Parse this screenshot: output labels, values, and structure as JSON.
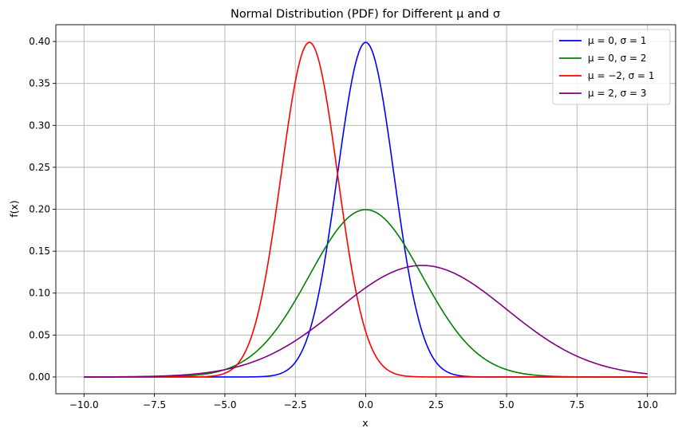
{
  "chart_data": {
    "type": "line",
    "title": "Normal Distribution (PDF) for Different μ and σ",
    "xlabel": "x",
    "ylabel": "f(x)",
    "xlim": [
      -11.0,
      11.0
    ],
    "ylim": [
      -0.02,
      0.42
    ],
    "grid": true,
    "legend_position": "top-right",
    "x_ticks": [
      "−10.0",
      "−7.5",
      "−5.0",
      "−2.5",
      "0.0",
      "2.5",
      "5.0",
      "7.5",
      "10.0"
    ],
    "x_tick_values": [
      -10,
      -7.5,
      -5,
      -2.5,
      0,
      2.5,
      5,
      7.5,
      10
    ],
    "y_ticks": [
      "0.00",
      "0.05",
      "0.10",
      "0.15",
      "0.20",
      "0.25",
      "0.30",
      "0.35",
      "0.40"
    ],
    "y_tick_values": [
      0,
      0.05,
      0.1,
      0.15,
      0.2,
      0.25,
      0.3,
      0.35,
      0.4
    ],
    "series": [
      {
        "name": "μ = 0, σ = 1",
        "mu": 0,
        "sigma": 1,
        "color": "#0000ff",
        "x_range": [
          -10,
          10
        ]
      },
      {
        "name": "μ = 0, σ = 2",
        "mu": 0,
        "sigma": 2,
        "color": "#008000",
        "x_range": [
          -10,
          10
        ]
      },
      {
        "name": "μ = −2, σ = 1",
        "mu": -2,
        "sigma": 1,
        "color": "#ff0000",
        "x_range": [
          -10,
          10
        ]
      },
      {
        "name": "μ = 2, σ = 3",
        "mu": 2,
        "sigma": 3,
        "color": "#800080",
        "x_range": [
          -10,
          10
        ]
      }
    ]
  }
}
